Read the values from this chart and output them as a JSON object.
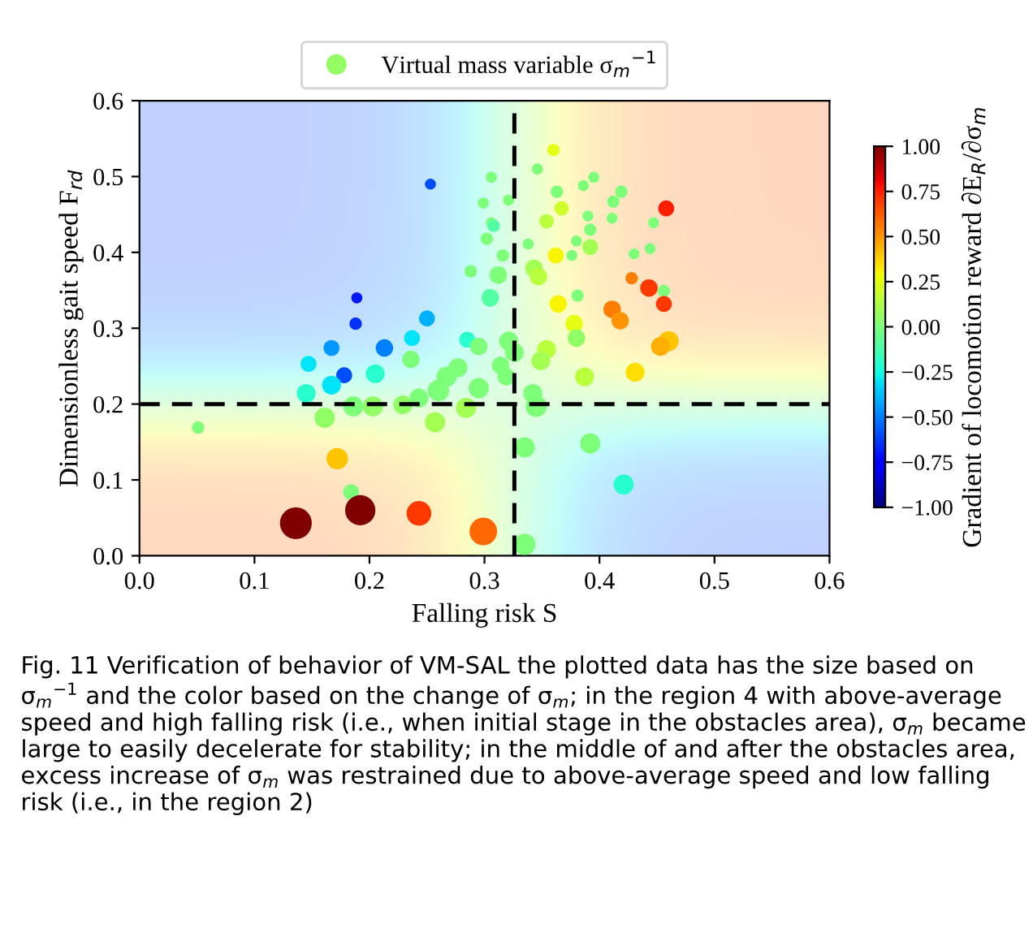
{
  "chart_data": {
    "type": "scatter",
    "xlabel": "Falling risk S",
    "ylabel": "Dimensionless gait speed F$_{rd}$",
    "clabel": "Gradient of locomotion reward ∂E$_{R}$/∂σ$_{m}$",
    "xlim": [
      0.0,
      0.6
    ],
    "xticks": [
      {
        "value": 0.0,
        "label": "0.0"
      },
      0.1,
      0.2,
      0.3,
      0.4,
      0.5,
      0.6
    ],
    "ylim": [
      0.0,
      0.6
    ],
    "yticks": [
      {
        "value": 0.0,
        "label": "0.0"
      },
      0.1,
      0.2,
      0.3,
      0.4,
      0.5,
      0.6
    ],
    "clim": [
      -1.0,
      1.0
    ],
    "cticks": [
      {
        "value": -1.0,
        "label": "−1.00"
      },
      {
        "value": -0.75,
        "label": "−0.75"
      },
      {
        "value": -0.5,
        "label": "−0.50"
      },
      {
        "value": -0.25,
        "label": "−0.25"
      },
      {
        "value": 0.0,
        "label": "0.00"
      },
      {
        "value": 0.25,
        "label": "0.25"
      },
      {
        "value": 0.5,
        "label": "0.50"
      },
      {
        "value": 0.75,
        "label": "0.75"
      },
      {
        "value": 1.0,
        "label": "1.00"
      }
    ],
    "legend": "top",
    "grid": false,
    "marker": "circle",
    "ref_lines": [
      {
        "axis": "x",
        "value": 0.326,
        "color": "#000000",
        "line_style": "dashed"
      },
      {
        "axis": "y",
        "value": 0.2,
        "color": "#000000",
        "line_style": "dashed"
      }
    ],
    "series": [
      {
        "name": "Virtual mass variable σ$_{m}$$^{−1}$",
        "x": [
          0.253,
          0.189,
          0.188,
          0.25,
          0.213,
          0.167,
          0.147,
          0.178,
          0.167,
          0.205,
          0.145,
          0.237,
          0.236,
          0.277,
          0.267,
          0.26,
          0.051,
          0.161,
          0.186,
          0.203,
          0.229,
          0.243,
          0.257,
          0.284,
          0.295,
          0.172,
          0.184,
          0.192,
          0.243,
          0.136,
          0.299,
          0.288,
          0.305,
          0.285,
          0.299,
          0.306,
          0.302,
          0.306,
          0.295,
          0.36,
          0.346,
          0.395,
          0.386,
          0.363,
          0.419,
          0.412,
          0.458,
          0.321,
          0.367,
          0.354,
          0.39,
          0.411,
          0.447,
          0.392,
          0.308,
          0.38,
          0.338,
          0.392,
          0.444,
          0.43,
          0.376,
          0.362,
          0.316,
          0.343,
          0.347,
          0.312,
          0.428,
          0.443,
          0.456,
          0.381,
          0.456,
          0.364,
          0.411,
          0.418,
          0.378,
          0.38,
          0.46,
          0.453,
          0.354,
          0.349,
          0.321,
          0.326,
          0.314,
          0.319,
          0.387,
          0.431,
          0.342,
          0.345,
          0.335,
          0.392,
          0.421,
          0.335
        ],
        "values": [
          0.49,
          0.34,
          0.306,
          0.313,
          0.274,
          0.274,
          0.253,
          0.238,
          0.225,
          0.24,
          0.214,
          0.287,
          0.259,
          0.248,
          0.236,
          0.218,
          0.169,
          0.182,
          0.197,
          0.197,
          0.199,
          0.208,
          0.176,
          0.195,
          0.221,
          0.128,
          0.084,
          0.06,
          0.056,
          0.043,
          0.032,
          0.375,
          0.34,
          0.285,
          0.465,
          0.499,
          0.418,
          0.439,
          0.276,
          0.535,
          0.51,
          0.499,
          0.488,
          0.48,
          0.48,
          0.467,
          0.458,
          0.469,
          0.458,
          0.441,
          0.448,
          0.445,
          0.439,
          0.43,
          0.435,
          0.415,
          0.411,
          0.407,
          0.405,
          0.398,
          0.396,
          0.396,
          0.396,
          0.379,
          0.368,
          0.37,
          0.366,
          0.353,
          0.349,
          0.343,
          0.332,
          0.332,
          0.325,
          0.31,
          0.306,
          0.287,
          0.283,
          0.276,
          0.272,
          0.257,
          0.283,
          0.268,
          0.251,
          0.236,
          0.236,
          0.242,
          0.214,
          0.197,
          0.143,
          0.148,
          0.094,
          0.015
        ],
        "sizes": [
          0.12,
          0.12,
          0.15,
          0.25,
          0.3,
          0.25,
          0.25,
          0.25,
          0.35,
          0.35,
          0.35,
          0.25,
          0.3,
          0.35,
          0.4,
          0.45,
          0.15,
          0.4,
          0.4,
          0.4,
          0.35,
          0.35,
          0.4,
          0.4,
          0.4,
          0.45,
          0.25,
          0.9,
          0.6,
          1.0,
          0.75,
          0.15,
          0.3,
          0.25,
          0.12,
          0.12,
          0.15,
          0.12,
          0.3,
          0.15,
          0.12,
          0.12,
          0.12,
          0.15,
          0.15,
          0.15,
          0.25,
          0.12,
          0.2,
          0.2,
          0.12,
          0.12,
          0.12,
          0.15,
          0.15,
          0.12,
          0.12,
          0.25,
          0.12,
          0.12,
          0.12,
          0.25,
          0.15,
          0.3,
          0.3,
          0.3,
          0.15,
          0.3,
          0.15,
          0.15,
          0.25,
          0.3,
          0.3,
          0.3,
          0.3,
          0.3,
          0.4,
          0.35,
          0.35,
          0.35,
          0.35,
          0.35,
          0.3,
          0.3,
          0.35,
          0.35,
          0.35,
          0.45,
          0.4,
          0.4,
          0.4,
          0.45
        ],
        "cvalues": [
          -0.6,
          -0.7,
          -0.65,
          -0.4,
          -0.5,
          -0.45,
          -0.3,
          -0.6,
          -0.3,
          -0.2,
          -0.2,
          -0.3,
          0.0,
          0.0,
          0.0,
          0.0,
          0.0,
          0.05,
          0.0,
          0.05,
          0.05,
          0.0,
          0.1,
          0.1,
          0.0,
          0.4,
          0.0,
          1.0,
          0.7,
          1.0,
          0.6,
          0.0,
          -0.1,
          -0.2,
          0.0,
          0.0,
          0.0,
          0.0,
          0.0,
          0.25,
          0.0,
          0.0,
          0.0,
          0.0,
          0.0,
          0.0,
          0.75,
          0.0,
          0.2,
          0.15,
          0.0,
          0.0,
          0.0,
          0.0,
          -0.1,
          0.0,
          0.0,
          0.1,
          0.0,
          0.0,
          0.0,
          0.3,
          0.0,
          0.1,
          0.15,
          0.0,
          0.55,
          0.7,
          0.0,
          0.0,
          0.7,
          0.3,
          0.55,
          0.5,
          0.25,
          0.05,
          0.4,
          0.45,
          0.15,
          0.1,
          0.0,
          0.0,
          0.0,
          0.0,
          0.15,
          0.35,
          0.0,
          0.0,
          0.0,
          0.0,
          -0.2,
          0.0
        ]
      }
    ],
    "annotations": [
      "Fig. 11 Verification of behavior of VM-SAL the plotted data has the size based on σ$_{m}$$^{−1}$ and the color based on the change of σ$_{m}$; in the region 4 with above-average speed and high falling risk (i.e., when initial stage in the obstacles area), σ$_{m}$ became large to easily decelerate for stability; in the middle of and after the obstacles area, excess increase of σ$_{m}$ was restrained due to above-average speed and low falling risk (i.e., in the region 2)"
    ]
  }
}
